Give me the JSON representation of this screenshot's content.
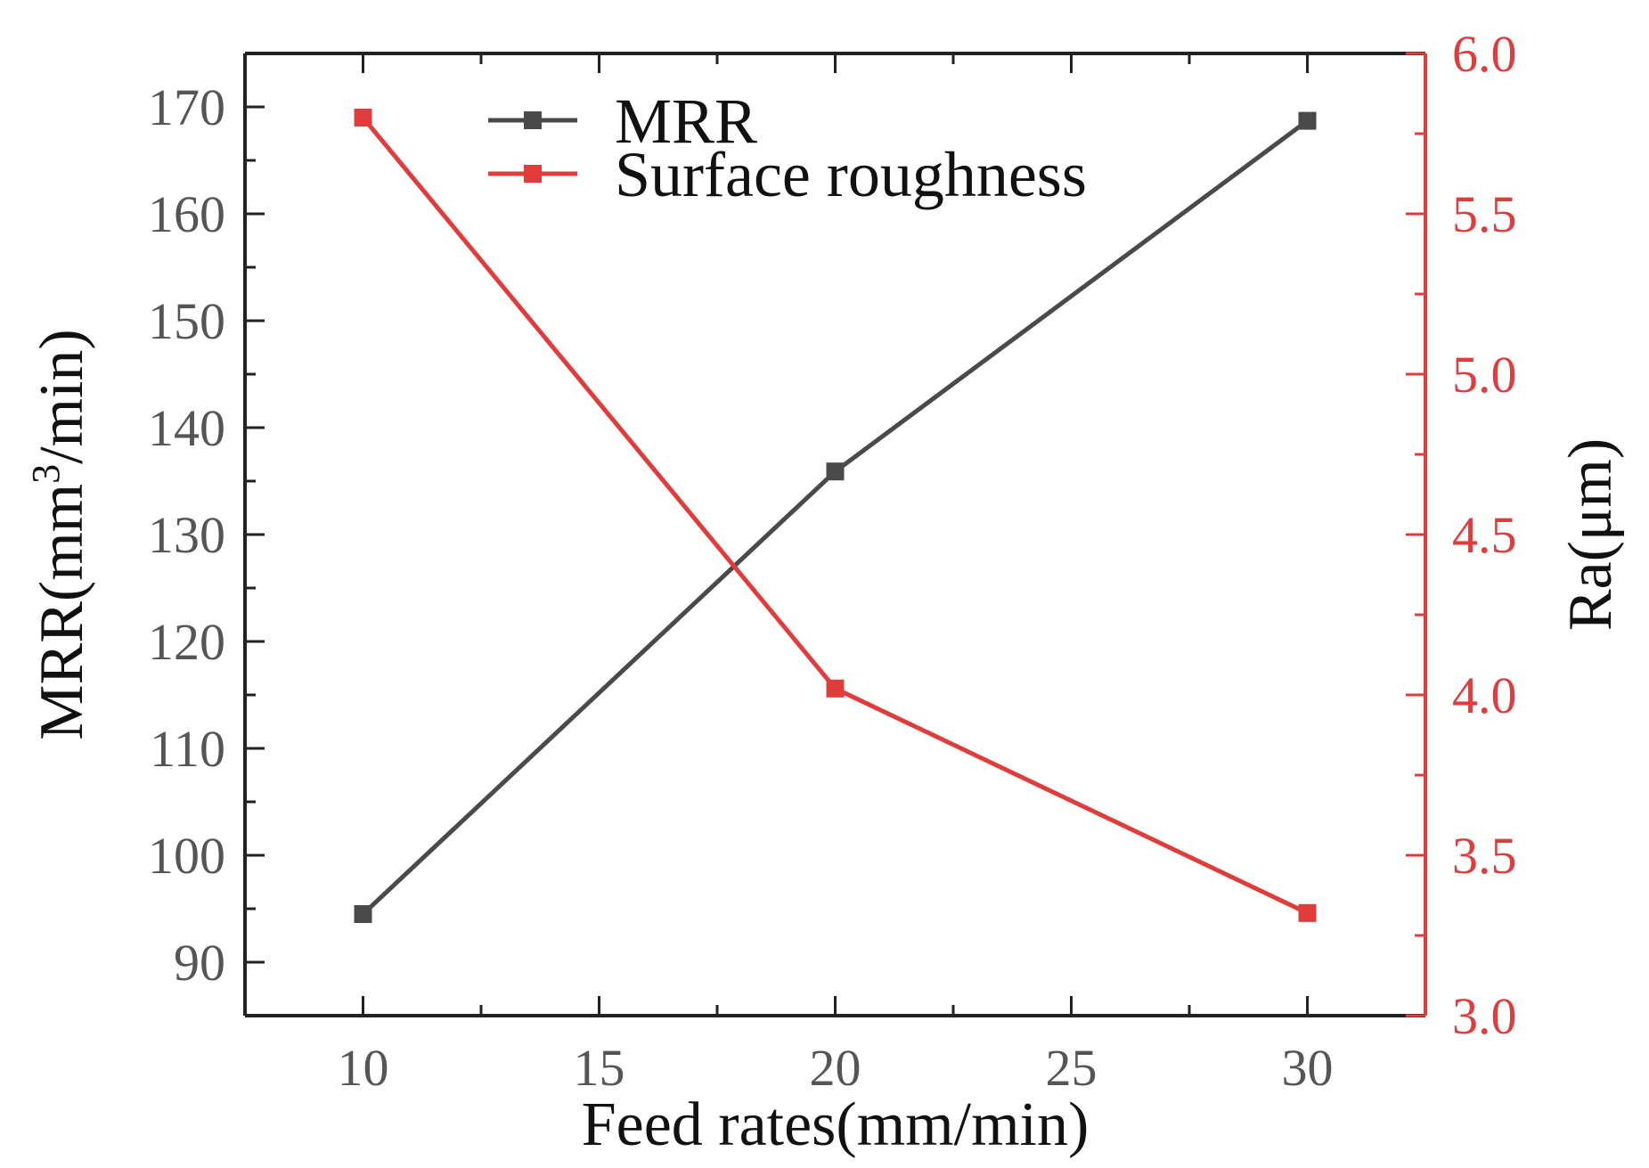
{
  "chart_data": {
    "type": "line",
    "x": [
      10,
      20,
      30
    ],
    "xlabel": "Feed rates(mm/min)",
    "xlim": [
      7.5,
      32.5
    ],
    "xticks": [
      10,
      15,
      20,
      25,
      30
    ],
    "ylabel_left": {
      "main": "MRR(mm",
      "sup": "3",
      "rest": "/min)"
    },
    "ylim_left": [
      85,
      175
    ],
    "yticks_left": [
      90,
      100,
      110,
      120,
      130,
      140,
      150,
      160,
      170
    ],
    "ylabel_right": "Ra(μm)",
    "ylim_right": [
      3.0,
      6.0
    ],
    "yticks_right": [
      "3.0",
      "3.5",
      "4.0",
      "4.5",
      "5.0",
      "5.5",
      "6.0"
    ],
    "grid": false,
    "legend_position": "top-center",
    "series": [
      {
        "name": "MRR",
        "axis": "left",
        "color": "#4a4a4a",
        "values": [
          94.5,
          135.9,
          168.7
        ]
      },
      {
        "name": "Surface roughness",
        "axis": "right",
        "color": "#e03c3c",
        "values": [
          5.8,
          4.02,
          3.32
        ]
      }
    ],
    "colors": {
      "axis": "#222222",
      "right_axis": "#e03c3c",
      "text": "#555555"
    }
  }
}
